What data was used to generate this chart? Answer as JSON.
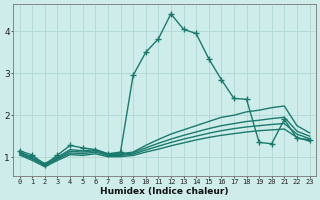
{
  "xlabel": "Humidex (Indice chaleur)",
  "bg_color": "#ceecea",
  "grid_color": "#b0d8d4",
  "line_color": "#1a7a6e",
  "x_ticks": [
    0,
    1,
    2,
    3,
    4,
    5,
    6,
    7,
    8,
    9,
    10,
    11,
    12,
    13,
    14,
    15,
    16,
    17,
    18,
    19,
    20,
    21,
    22,
    23
  ],
  "ylim": [
    0.55,
    4.65
  ],
  "xlim": [
    -0.5,
    23.5
  ],
  "series": [
    {
      "x": [
        0,
        1,
        2,
        3,
        4,
        5,
        6,
        7,
        8,
        9,
        10,
        11,
        12,
        13,
        14,
        15,
        16,
        17,
        18,
        19,
        20,
        21,
        22,
        23
      ],
      "y": [
        1.15,
        1.05,
        0.82,
        1.05,
        1.28,
        1.22,
        1.18,
        1.08,
        1.12,
        2.95,
        3.5,
        3.82,
        4.42,
        4.05,
        3.95,
        3.35,
        2.85,
        2.4,
        2.38,
        1.35,
        1.32,
        1.9,
        1.45,
        1.42
      ],
      "marker": "+",
      "markersize": 4,
      "linewidth": 1.0
    },
    {
      "x": [
        0,
        1,
        2,
        3,
        4,
        5,
        6,
        7,
        8,
        9,
        10,
        11,
        12,
        13,
        14,
        15,
        16,
        17,
        18,
        19,
        20,
        21,
        22,
        23
      ],
      "y": [
        1.12,
        1.0,
        0.85,
        1.0,
        1.18,
        1.15,
        1.18,
        1.08,
        1.08,
        1.12,
        1.28,
        1.42,
        1.55,
        1.65,
        1.75,
        1.85,
        1.95,
        2.0,
        2.08,
        2.12,
        2.18,
        2.22,
        1.75,
        1.58
      ],
      "marker": null,
      "linewidth": 1.0
    },
    {
      "x": [
        0,
        1,
        2,
        3,
        4,
        5,
        6,
        7,
        8,
        9,
        10,
        11,
        12,
        13,
        14,
        15,
        16,
        17,
        18,
        19,
        20,
        21,
        22,
        23
      ],
      "y": [
        1.1,
        0.97,
        0.82,
        0.97,
        1.14,
        1.12,
        1.15,
        1.06,
        1.06,
        1.1,
        1.22,
        1.33,
        1.43,
        1.52,
        1.6,
        1.68,
        1.75,
        1.8,
        1.85,
        1.88,
        1.92,
        1.95,
        1.62,
        1.5
      ],
      "marker": null,
      "linewidth": 1.0
    },
    {
      "x": [
        0,
        1,
        2,
        3,
        4,
        5,
        6,
        7,
        8,
        9,
        10,
        11,
        12,
        13,
        14,
        15,
        16,
        17,
        18,
        19,
        20,
        21,
        22,
        23
      ],
      "y": [
        1.08,
        0.95,
        0.8,
        0.95,
        1.1,
        1.08,
        1.12,
        1.04,
        1.04,
        1.07,
        1.17,
        1.26,
        1.35,
        1.43,
        1.5,
        1.57,
        1.63,
        1.68,
        1.72,
        1.75,
        1.78,
        1.8,
        1.55,
        1.44
      ],
      "marker": null,
      "linewidth": 1.0
    },
    {
      "x": [
        0,
        1,
        2,
        3,
        4,
        5,
        6,
        7,
        8,
        9,
        10,
        11,
        12,
        13,
        14,
        15,
        16,
        17,
        18,
        19,
        20,
        21,
        22,
        23
      ],
      "y": [
        1.05,
        0.92,
        0.77,
        0.92,
        1.06,
        1.04,
        1.08,
        1.01,
        1.01,
        1.04,
        1.12,
        1.19,
        1.27,
        1.34,
        1.41,
        1.47,
        1.52,
        1.56,
        1.6,
        1.63,
        1.65,
        1.67,
        1.47,
        1.38
      ],
      "marker": null,
      "linewidth": 1.0
    }
  ]
}
